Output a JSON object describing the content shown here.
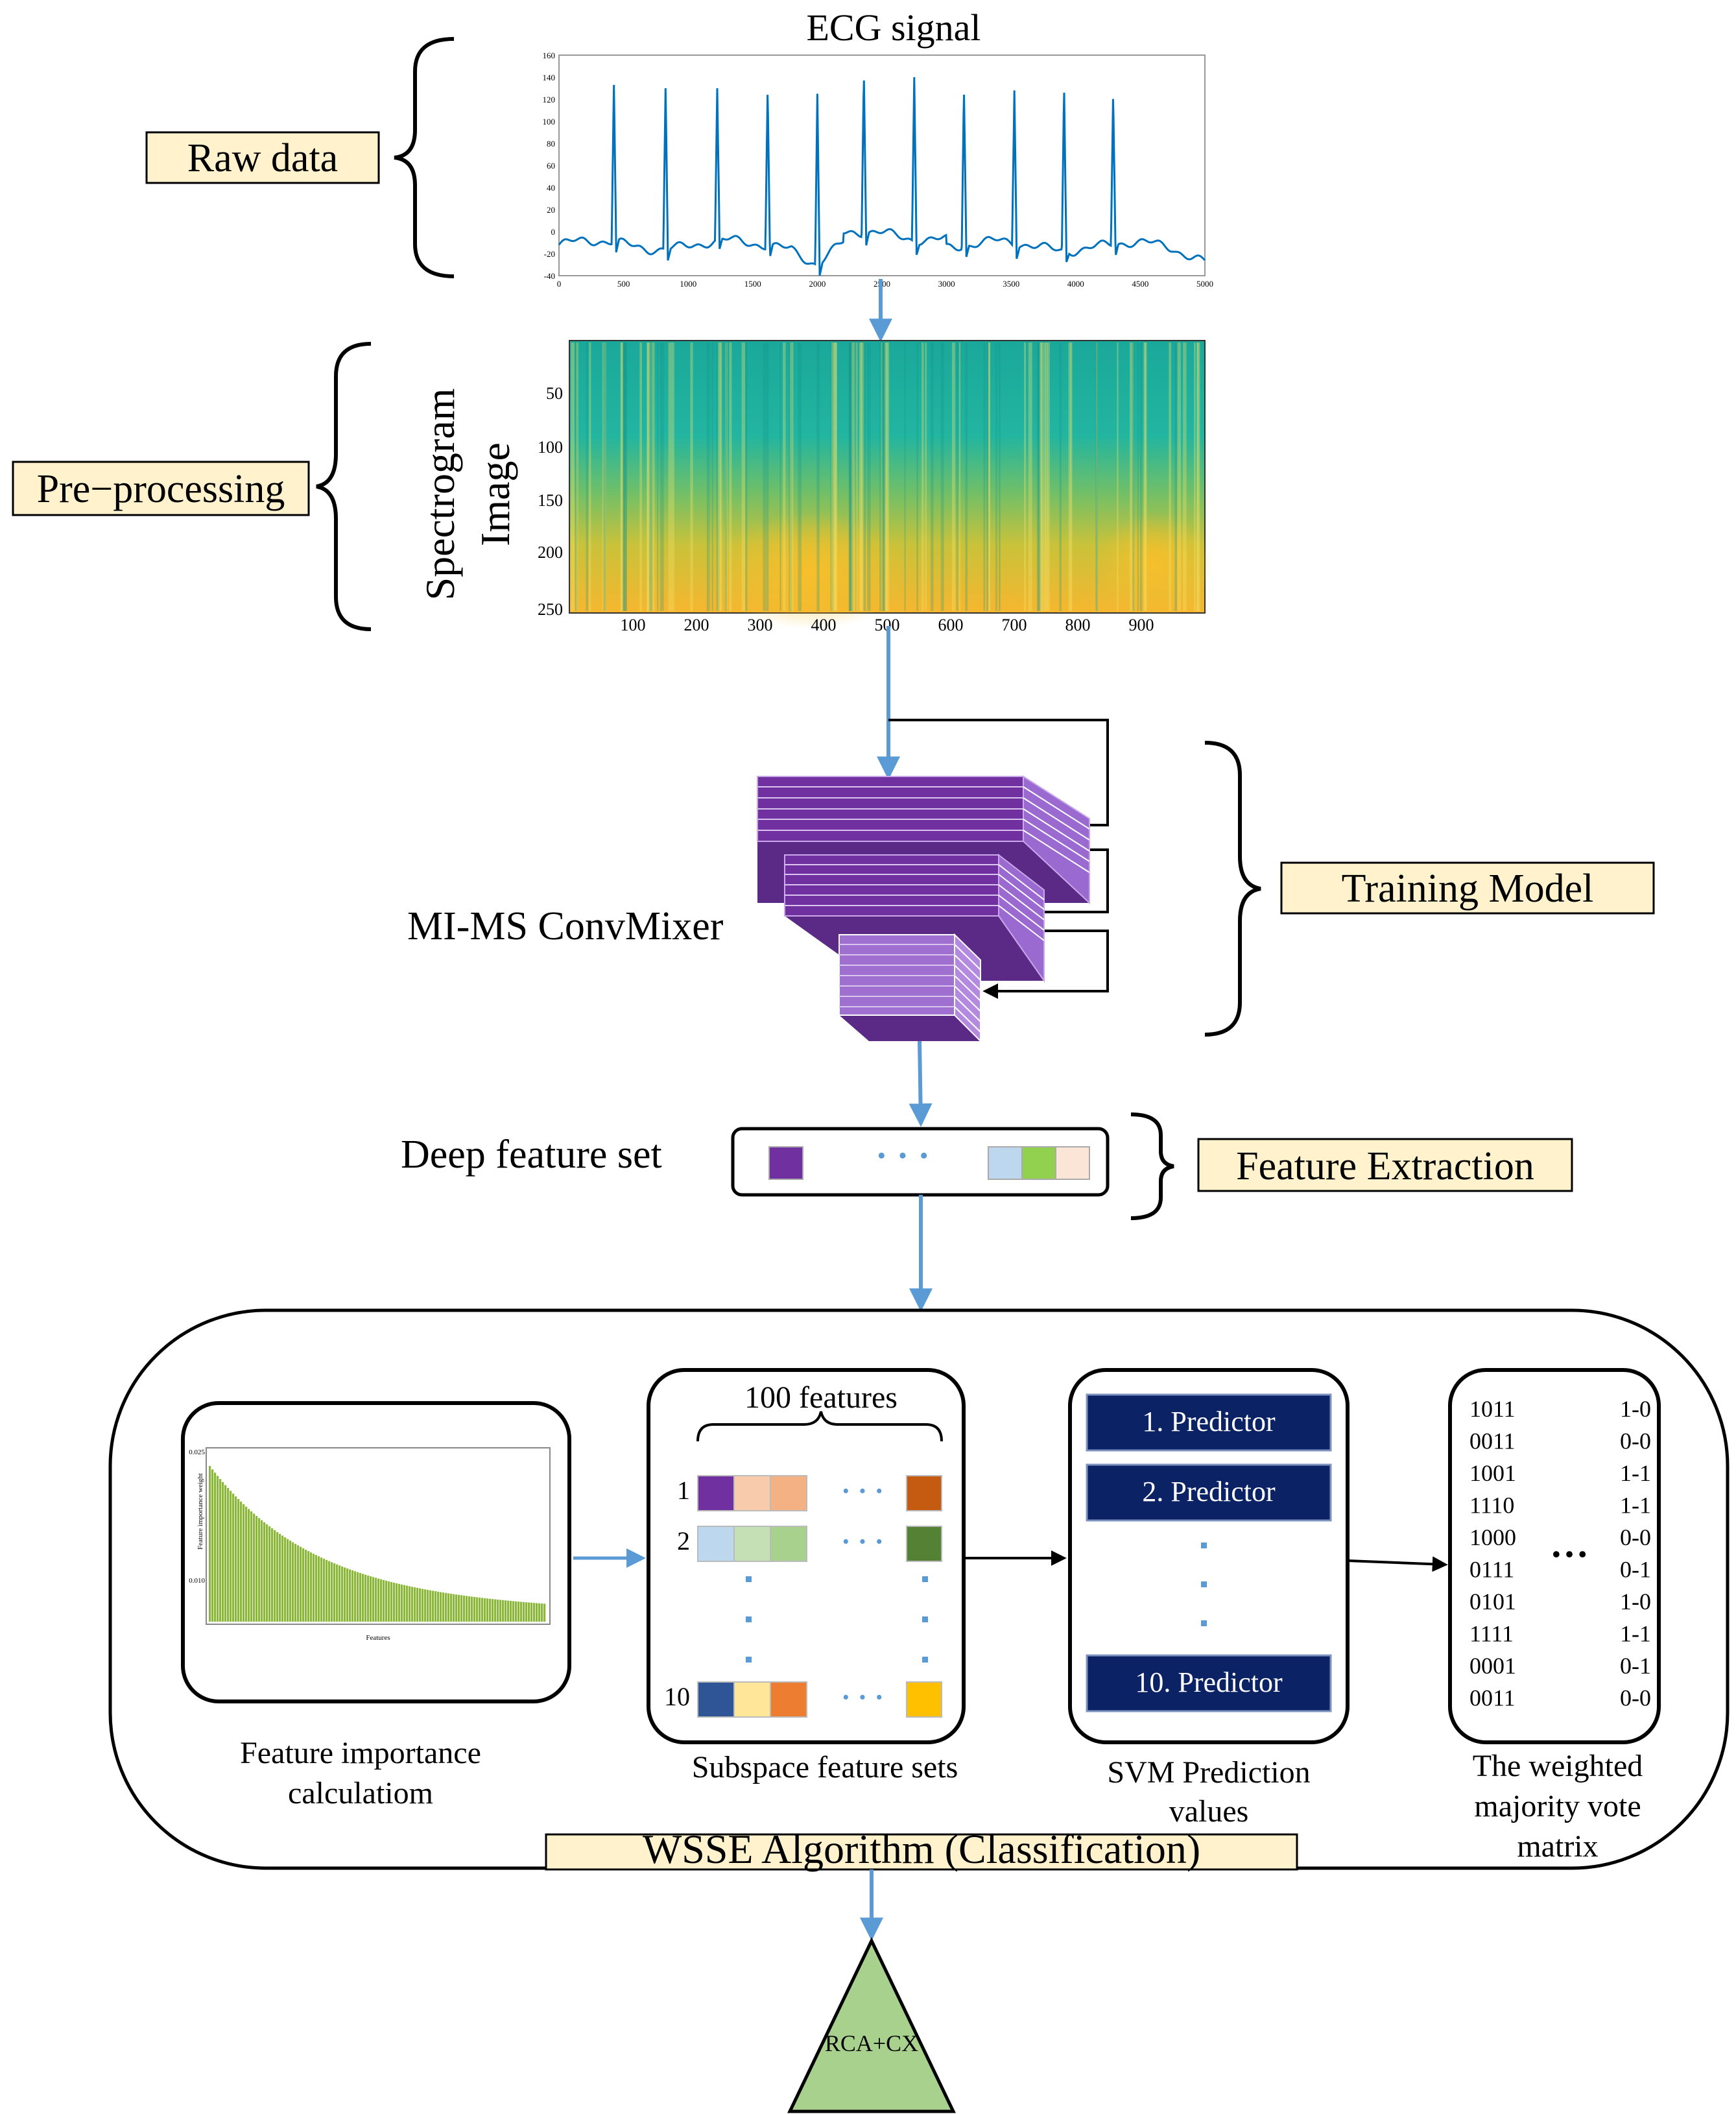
{
  "stages": {
    "raw_data": "Raw data",
    "pre_processing": "Pre−processing",
    "training_model": "Training Model",
    "feature_extraction": "Feature Extraction",
    "wsse": "WSSE Algorithm (Classification)"
  },
  "ecg": {
    "title": "ECG signal",
    "y_ticks": [
      "160",
      "140",
      "120",
      "100",
      "80",
      "60",
      "40",
      "20",
      "0",
      "-20",
      "-40"
    ],
    "x_ticks": [
      "0",
      "500",
      "1000",
      "1500",
      "2000",
      "2500",
      "3000",
      "3500",
      "4000",
      "4500",
      "5000"
    ]
  },
  "spectrogram": {
    "ylabel_line1": "Spectrogram",
    "ylabel_line2": "Image",
    "y_ticks": [
      "50",
      "100",
      "150",
      "200",
      "250"
    ],
    "x_ticks": [
      "100",
      "200",
      "300",
      "400",
      "500",
      "600",
      "700",
      "800",
      "900"
    ]
  },
  "model_label": "MI-MS ConvMixer",
  "deep_feature": {
    "label": "Deep feature set",
    "dots": "·   ·   ·",
    "cell_colors": [
      "#7030a0",
      "#bdd7ee",
      "#92d050",
      "#fbe5d6"
    ]
  },
  "importance": {
    "caption_line1": "Feature importance",
    "caption_line2": "calculatiom",
    "y_top_tick": "0.025",
    "y_mid_tick": "0.010",
    "ylabel": "Feature importance weight",
    "xlabel": "Features",
    "bar_color": "#8bb83b"
  },
  "subspace": {
    "header": "100 features",
    "caption": "Subspace feature sets",
    "rows": [
      {
        "index": "1",
        "colors": [
          "#7030a0",
          "#f8cbad",
          "#f4b183",
          "#c55a11"
        ]
      },
      {
        "index": "2",
        "colors": [
          "#bdd7ee",
          "#c5e0b4",
          "#a9d18e",
          "#548235"
        ]
      },
      {
        "index": "10",
        "colors": [
          "#2f5597",
          "#ffe699",
          "#ed7d31",
          "#ffc000"
        ]
      }
    ],
    "hdots": "·   ·   ·"
  },
  "svm": {
    "predictors": [
      "1. Predictor",
      "2. Predictor",
      "10. Predictor"
    ],
    "caption_line1": "SVM Prediction",
    "caption_line2": "values",
    "box_color": "#0b2265"
  },
  "vote": {
    "codes": [
      "1011",
      "0011",
      "1001",
      "1110",
      "1000",
      "0111",
      "0101",
      "1111",
      "0001",
      "0011"
    ],
    "pairs": [
      "1-0",
      "0-0",
      "1-1",
      "1-1",
      "0-0",
      "0-1",
      "1-0",
      "1-1",
      "0-1",
      "0-0"
    ],
    "ellipsis": "…",
    "caption_line1": "The weighted",
    "caption_line2": "majority vote",
    "caption_line3": "matrix"
  },
  "output": {
    "label": "RCA+CX",
    "color": "#a9d18e"
  },
  "colors": {
    "label_bg": "#fff2cc",
    "arrow": "#5b9bd5",
    "ecg_line": "#0072bd",
    "purple_dark": "#5b2a86",
    "purple_mid": "#7030a0",
    "purple_light": "#a070d0"
  }
}
